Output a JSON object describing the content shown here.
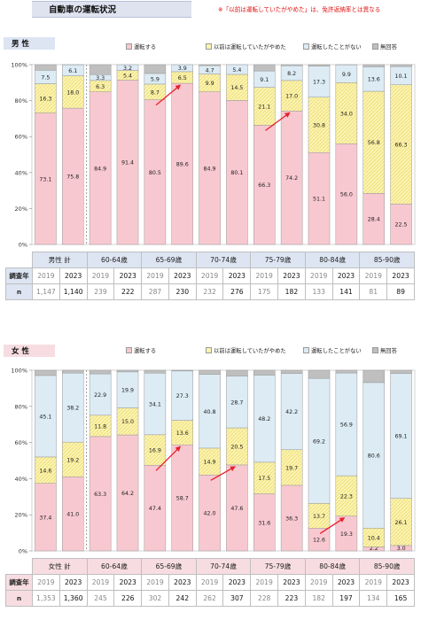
{
  "title": "自動車の運転状況",
  "note": "※「以前は運転していたがやめた」は、免許返納率とは異なる",
  "colors": {
    "drive": "#f8c8d0",
    "stopped": "#fbf3b0",
    "never": "#dcebf4",
    "noans": "#bfbfbf",
    "arrow": "#e8202a",
    "male_label_bg": "#dde5f3",
    "female_label_bg": "#f7dde2",
    "table_head_bg": "#dde5f3",
    "table_head_bg_f": "#f7dde2"
  },
  "legend": {
    "drive": "運転する",
    "stopped": "以前は運転していたがやめた",
    "never": "運転したことがない",
    "noans": "無回答"
  },
  "table_labels": {
    "year_row": "調査年",
    "n_row": "n"
  },
  "chart_data": [
    {
      "type": "bar",
      "stacked": true,
      "panel": "男 性",
      "ylim": [
        0,
        100
      ],
      "yticks": [
        "0%",
        "20%",
        "40%",
        "60%",
        "80%",
        "100%"
      ],
      "groups": [
        "男性 計",
        "60-64歳",
        "65-69歳",
        "70-74歳",
        "75-79歳",
        "80-84歳",
        "85-90歳"
      ],
      "years": [
        "2019",
        "2023",
        "2019",
        "2023",
        "2019",
        "2023",
        "2019",
        "2023",
        "2019",
        "2023",
        "2019",
        "2023",
        "2019",
        "2023"
      ],
      "n": [
        "1,147",
        "1,140",
        "239",
        "222",
        "287",
        "230",
        "232",
        "276",
        "175",
        "182",
        "133",
        "141",
        "81",
        "89"
      ],
      "series": [
        {
          "key": "drive",
          "values": [
            73.1,
            75.8,
            84.9,
            91.4,
            80.5,
            89.6,
            84.9,
            80.1,
            66.3,
            74.2,
            51.1,
            56.0,
            28.4,
            22.5
          ],
          "labels": [
            "73.1",
            "75.8",
            "84.9",
            "91.4",
            "80.5",
            "89.6",
            "84.9",
            "80.1",
            "66.3",
            "74.2",
            "51.1",
            "56.0",
            "28.4",
            "22.5"
          ]
        },
        {
          "key": "stopped",
          "values": [
            16.3,
            18.0,
            6.3,
            5.4,
            8.7,
            6.5,
            9.9,
            14.5,
            21.1,
            17.0,
            30.8,
            34.0,
            56.8,
            66.3
          ],
          "labels": [
            "16.3",
            "18.0",
            "6.3",
            "5.4",
            "8.7",
            "6.5",
            "9.9",
            "14.5",
            "21.1",
            "17.0",
            "30.8",
            "34.0",
            "56.8",
            "66.3"
          ]
        },
        {
          "key": "never",
          "values": [
            7.5,
            6.1,
            3.3,
            3.2,
            5.9,
            3.9,
            4.7,
            5.4,
            9.1,
            8.2,
            17.3,
            9.9,
            13.6,
            10.1
          ],
          "labels": [
            "7.5",
            "6.1",
            "3.3",
            "3.2",
            "5.9",
            "3.9",
            "4.7",
            "5.4",
            "9.1",
            "8.2",
            "17.3",
            "9.9",
            "13.6",
            "10.1"
          ]
        },
        {
          "key": "noans",
          "values": [
            3.1,
            0.1,
            5.5,
            0.0,
            4.9,
            0.0,
            0.5,
            0.0,
            3.5,
            0.6,
            0.8,
            0.1,
            1.2,
            1.1
          ],
          "labels": [
            "",
            "",
            "",
            "",
            "",
            "",
            "",
            "",
            "",
            "",
            "",
            "",
            "",
            ""
          ]
        }
      ],
      "arrows": [
        [
          4,
          5
        ],
        [
          8,
          9
        ]
      ]
    },
    {
      "type": "bar",
      "stacked": true,
      "panel": "女 性",
      "ylim": [
        0,
        100
      ],
      "yticks": [
        "0%",
        "20%",
        "40%",
        "60%",
        "80%",
        "100%"
      ],
      "groups": [
        "女性 計",
        "60-64歳",
        "65-69歳",
        "70-74歳",
        "75-79歳",
        "80-84歳",
        "85-90歳"
      ],
      "years": [
        "2019",
        "2023",
        "2019",
        "2023",
        "2019",
        "2023",
        "2019",
        "2023",
        "2019",
        "2023",
        "2019",
        "2023",
        "2019",
        "2023"
      ],
      "n": [
        "1,353",
        "1,360",
        "245",
        "226",
        "302",
        "242",
        "262",
        "307",
        "228",
        "223",
        "182",
        "197",
        "134",
        "165"
      ],
      "series": [
        {
          "key": "drive",
          "values": [
            37.4,
            41.0,
            63.3,
            64.2,
            47.4,
            58.7,
            42.0,
            47.6,
            31.6,
            36.3,
            12.6,
            19.3,
            2.2,
            3.0
          ],
          "labels": [
            "37.4",
            "41.0",
            "63.3",
            "64.2",
            "47.4",
            "58.7",
            "42.0",
            "47.6",
            "31.6",
            "36.3",
            "12.6",
            "19.3",
            "2.2",
            "3.0"
          ]
        },
        {
          "key": "stopped",
          "values": [
            14.6,
            19.2,
            11.8,
            15.0,
            16.9,
            13.6,
            14.9,
            20.5,
            17.5,
            19.7,
            13.7,
            22.3,
            10.4,
            26.1
          ],
          "labels": [
            "14.6",
            "19.2",
            "11.8",
            "15.0",
            "16.9",
            "13.6",
            "14.9",
            "20.5",
            "17.5",
            "19.7",
            "13.7",
            "22.3",
            "10.4",
            "26.1"
          ]
        },
        {
          "key": "never",
          "values": [
            45.1,
            38.2,
            22.9,
            19.9,
            34.1,
            27.3,
            40.8,
            28.7,
            48.2,
            42.2,
            69.2,
            56.9,
            80.6,
            69.1
          ],
          "labels": [
            "45.1",
            "38.2",
            "22.9",
            "19.9",
            "34.1",
            "27.3",
            "40.8",
            "28.7",
            "48.2",
            "42.2",
            "69.2",
            "56.9",
            "80.6",
            "69.1"
          ]
        },
        {
          "key": "noans",
          "values": [
            2.9,
            1.6,
            2.0,
            0.9,
            1.6,
            0.4,
            2.3,
            3.2,
            2.7,
            1.8,
            4.5,
            1.5,
            6.8,
            1.8
          ],
          "labels": [
            "",
            "",
            "",
            "",
            "",
            "",
            "",
            "",
            "",
            "",
            "",
            "",
            "",
            ""
          ]
        }
      ],
      "arrows": [
        [
          4,
          5
        ],
        [
          6,
          7
        ],
        [
          10,
          11
        ]
      ]
    }
  ]
}
